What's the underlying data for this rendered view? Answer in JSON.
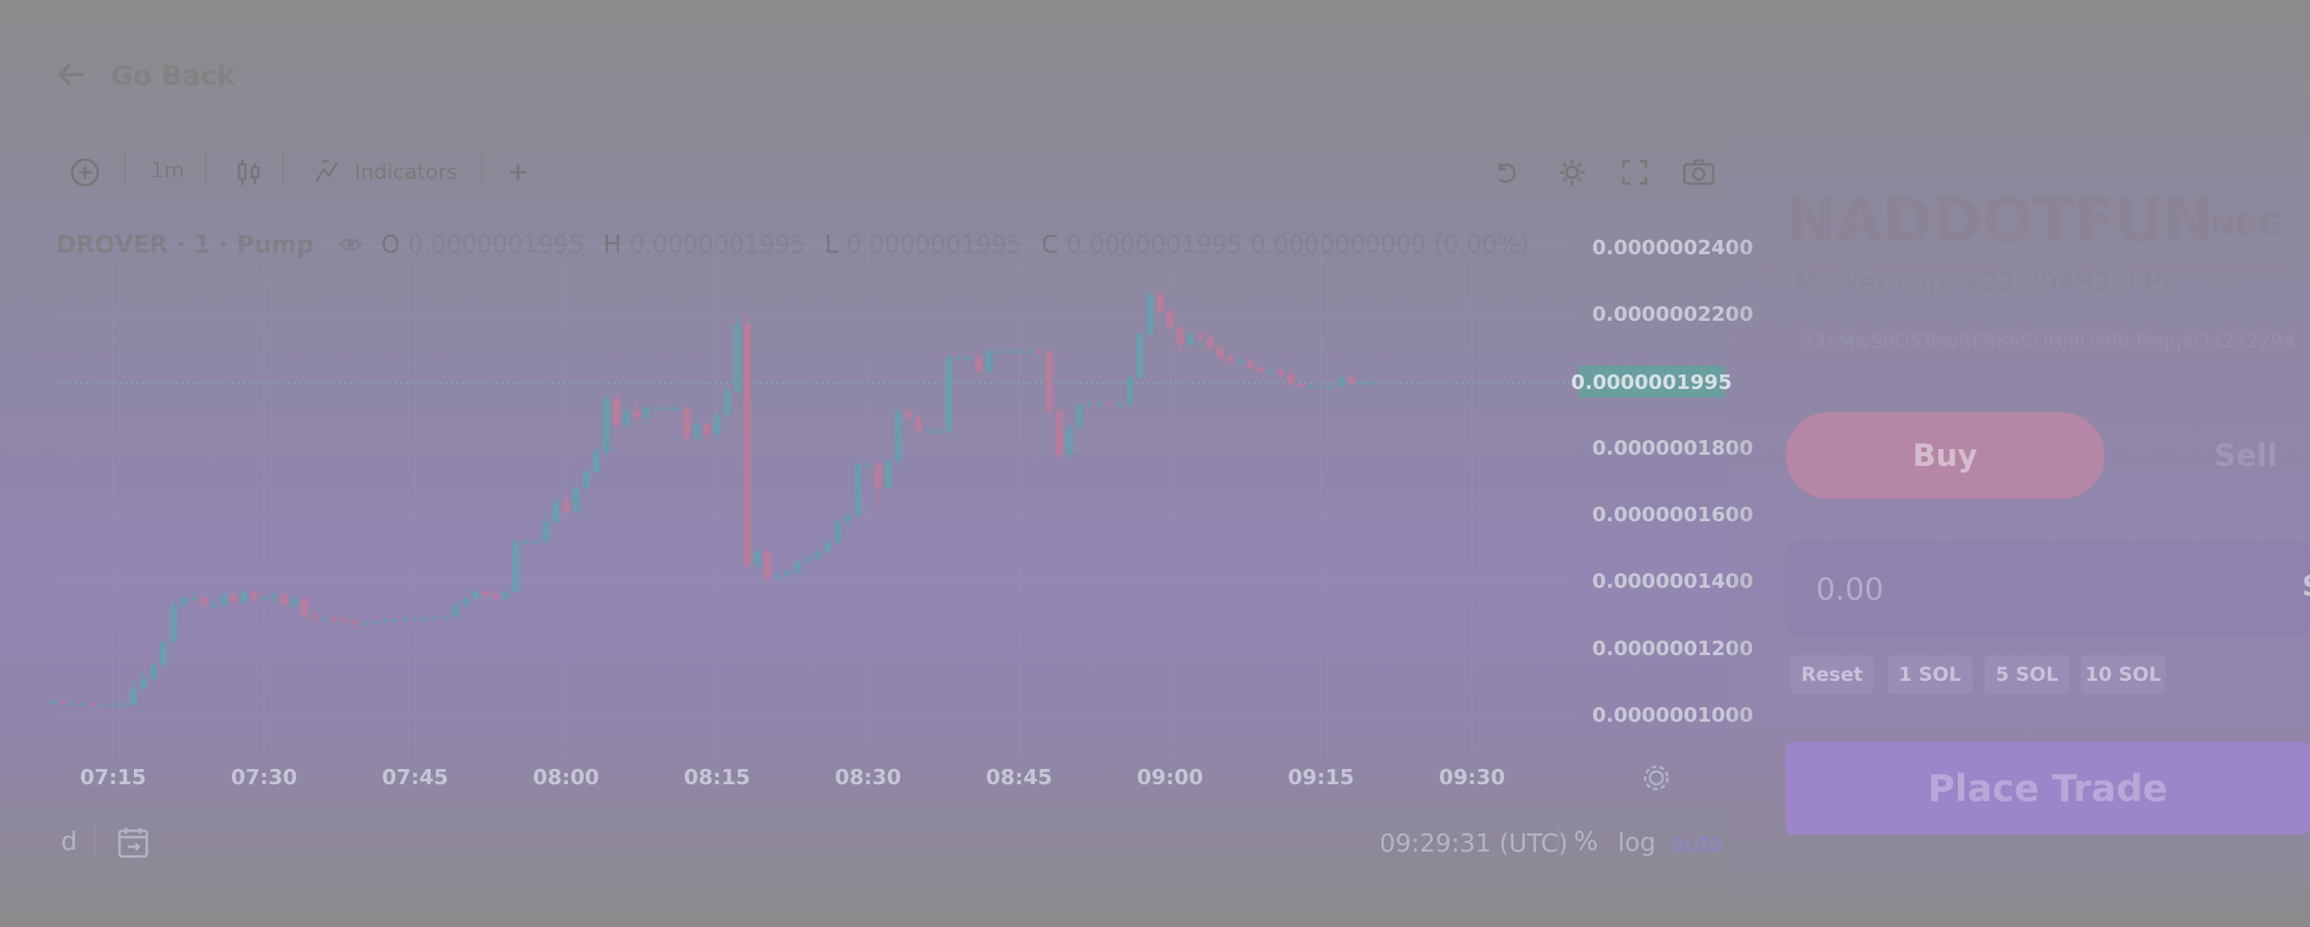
{
  "nav": {
    "back_label": "Go Back"
  },
  "toolbar": {
    "interval": "1m",
    "indicators_label": "Indicators"
  },
  "legend": {
    "symbol": "DROVER · 1 · Pump",
    "open_label": "O",
    "open": "0.0000001995",
    "high_label": "H",
    "high": "0.0000001995",
    "low_label": "L",
    "low": "0.0000001995",
    "close_label": "C",
    "close": "0.0000001995",
    "change": "0.0000000000 (0.00%)"
  },
  "price_scale": {
    "ticks": [
      "0.0000002400",
      "0.0000002200",
      "0.0000001800",
      "0.0000001600",
      "0.0000001400",
      "0.0000001200",
      "0.0000001000"
    ],
    "last_price": "0.0000001995"
  },
  "time_scale": {
    "ticks": [
      "07:15",
      "07:30",
      "07:45",
      "08:00",
      "08:15",
      "08:30",
      "08:45",
      "09:00",
      "09:15",
      "09:30"
    ]
  },
  "bottom_bar": {
    "range_fragment": "d",
    "clock": "09:29:31 (UTC)",
    "percent": "%",
    "log": "log",
    "auto": "auto"
  },
  "token": {
    "name": "NADDOTFUN",
    "ticker": "NDG",
    "market_cap": "Market cap: $23.39483.345",
    "address": "23eMwS8O5TewR6886SOHjdOMRcFeqq4Q4222294"
  },
  "trade": {
    "buy_label": "Buy",
    "sell_label": "Sell",
    "amount_placeholder": "0.00",
    "amount_unit": "S",
    "quick_amounts": [
      "Reset",
      "1 SOL",
      "5 SOL",
      "10 SOL"
    ],
    "place_label": "Place Trade"
  },
  "colors": {
    "up": "#6c9cae",
    "down": "#b77d9c",
    "buy": "#b686a6",
    "place_trade": "#9c85c8"
  },
  "chart_data": {
    "type": "candlestick",
    "y_range": [
      9.5e-08,
      2.43e-07
    ],
    "x_range": [
      "07:09",
      "09:36"
    ],
    "candles": [
      {
        "t": "07:09",
        "o": 1.04,
        "h": 1.05,
        "l": 1.03,
        "c": 1.04
      },
      {
        "t": "07:10",
        "o": 1.04,
        "h": 1.04,
        "l": 1.03,
        "c": 1.035
      },
      {
        "t": "07:11",
        "o": 1.035,
        "h": 1.04,
        "l": 1.03,
        "c": 1.035
      },
      {
        "t": "07:12",
        "o": 1.035,
        "h": 1.04,
        "l": 1.03,
        "c": 1.035
      },
      {
        "t": "07:13",
        "o": 1.035,
        "h": 1.04,
        "l": 1.03,
        "c": 1.03
      },
      {
        "t": "07:14",
        "o": 1.03,
        "h": 1.04,
        "l": 1.03,
        "c": 1.03
      },
      {
        "t": "07:15",
        "o": 1.03,
        "h": 1.04,
        "l": 1.03,
        "c": 1.03
      },
      {
        "t": "07:16",
        "o": 1.03,
        "h": 1.05,
        "l": 1.03,
        "c": 1.03
      },
      {
        "t": "07:17",
        "o": 1.03,
        "h": 1.1,
        "l": 1.03,
        "c": 1.08
      },
      {
        "t": "07:18",
        "o": 1.08,
        "h": 1.13,
        "l": 1.07,
        "c": 1.11
      },
      {
        "t": "07:19",
        "o": 1.11,
        "h": 1.16,
        "l": 1.1,
        "c": 1.15
      },
      {
        "t": "07:20",
        "o": 1.15,
        "h": 1.23,
        "l": 1.14,
        "c": 1.22
      },
      {
        "t": "07:21",
        "o": 1.22,
        "h": 1.35,
        "l": 1.21,
        "c": 1.33
      },
      {
        "t": "07:22",
        "o": 1.33,
        "h": 1.36,
        "l": 1.32,
        "c": 1.35
      },
      {
        "t": "07:23",
        "o": 1.35,
        "h": 1.37,
        "l": 1.34,
        "c": 1.35
      },
      {
        "t": "07:24",
        "o": 1.35,
        "h": 1.36,
        "l": 1.32,
        "c": 1.33
      },
      {
        "t": "07:25",
        "o": 1.33,
        "h": 1.35,
        "l": 1.32,
        "c": 1.33
      },
      {
        "t": "07:26",
        "o": 1.33,
        "h": 1.37,
        "l": 1.32,
        "c": 1.36
      },
      {
        "t": "07:27",
        "o": 1.36,
        "h": 1.37,
        "l": 1.33,
        "c": 1.34
      },
      {
        "t": "07:28",
        "o": 1.34,
        "h": 1.38,
        "l": 1.33,
        "c": 1.37
      },
      {
        "t": "07:29",
        "o": 1.37,
        "h": 1.38,
        "l": 1.34,
        "c": 1.35
      },
      {
        "t": "07:30",
        "o": 1.35,
        "h": 1.36,
        "l": 1.34,
        "c": 1.35
      },
      {
        "t": "07:31",
        "o": 1.35,
        "h": 1.37,
        "l": 1.33,
        "c": 1.36
      },
      {
        "t": "07:32",
        "o": 1.36,
        "h": 1.37,
        "l": 1.32,
        "c": 1.33
      },
      {
        "t": "07:33",
        "o": 1.33,
        "h": 1.36,
        "l": 1.32,
        "c": 1.35
      },
      {
        "t": "07:34",
        "o": 1.35,
        "h": 1.35,
        "l": 1.29,
        "c": 1.3
      },
      {
        "t": "07:35",
        "o": 1.3,
        "h": 1.31,
        "l": 1.28,
        "c": 1.29
      },
      {
        "t": "07:36",
        "o": 1.29,
        "h": 1.3,
        "l": 1.28,
        "c": 1.29
      },
      {
        "t": "07:37",
        "o": 1.29,
        "h": 1.3,
        "l": 1.28,
        "c": 1.285
      },
      {
        "t": "07:38",
        "o": 1.285,
        "h": 1.3,
        "l": 1.27,
        "c": 1.28
      },
      {
        "t": "07:39",
        "o": 1.28,
        "h": 1.29,
        "l": 1.26,
        "c": 1.275
      },
      {
        "t": "07:40",
        "o": 1.275,
        "h": 1.28,
        "l": 1.27,
        "c": 1.275
      },
      {
        "t": "07:41",
        "o": 1.275,
        "h": 1.28,
        "l": 1.27,
        "c": 1.28
      },
      {
        "t": "07:42",
        "o": 1.28,
        "h": 1.29,
        "l": 1.27,
        "c": 1.285
      },
      {
        "t": "07:43",
        "o": 1.285,
        "h": 1.29,
        "l": 1.28,
        "c": 1.285
      },
      {
        "t": "07:44",
        "o": 1.285,
        "h": 1.3,
        "l": 1.28,
        "c": 1.29
      },
      {
        "t": "07:45",
        "o": 1.29,
        "h": 1.3,
        "l": 1.28,
        "c": 1.29
      },
      {
        "t": "07:46",
        "o": 1.29,
        "h": 1.3,
        "l": 1.28,
        "c": 1.29
      },
      {
        "t": "07:47",
        "o": 1.29,
        "h": 1.3,
        "l": 1.28,
        "c": 1.295
      },
      {
        "t": "07:48",
        "o": 1.295,
        "h": 1.3,
        "l": 1.29,
        "c": 1.295
      },
      {
        "t": "07:49",
        "o": 1.295,
        "h": 1.34,
        "l": 1.29,
        "c": 1.33
      },
      {
        "t": "07:50",
        "o": 1.33,
        "h": 1.36,
        "l": 1.32,
        "c": 1.35
      },
      {
        "t": "07:51",
        "o": 1.35,
        "h": 1.38,
        "l": 1.34,
        "c": 1.37
      },
      {
        "t": "07:52",
        "o": 1.37,
        "h": 1.38,
        "l": 1.35,
        "c": 1.36
      },
      {
        "t": "07:53",
        "o": 1.36,
        "h": 1.38,
        "l": 1.34,
        "c": 1.35
      },
      {
        "t": "07:54",
        "o": 1.35,
        "h": 1.38,
        "l": 1.35,
        "c": 1.37
      },
      {
        "t": "07:55",
        "o": 1.37,
        "h": 1.53,
        "l": 1.36,
        "c": 1.52
      },
      {
        "t": "07:56",
        "o": 1.52,
        "h": 1.53,
        "l": 1.51,
        "c": 1.52
      },
      {
        "t": "07:57",
        "o": 1.52,
        "h": 1.53,
        "l": 1.51,
        "c": 1.52
      },
      {
        "t": "07:58",
        "o": 1.52,
        "h": 1.6,
        "l": 1.51,
        "c": 1.58
      },
      {
        "t": "07:59",
        "o": 1.58,
        "h": 1.65,
        "l": 1.57,
        "c": 1.64
      },
      {
        "t": "08:00",
        "o": 1.64,
        "h": 1.67,
        "l": 1.6,
        "c": 1.61
      },
      {
        "t": "08:01",
        "o": 1.61,
        "h": 1.69,
        "l": 1.6,
        "c": 1.68
      },
      {
        "t": "08:02",
        "o": 1.68,
        "h": 1.74,
        "l": 1.67,
        "c": 1.73
      },
      {
        "t": "08:03",
        "o": 1.73,
        "h": 1.8,
        "l": 1.72,
        "c": 1.79
      },
      {
        "t": "08:04",
        "o": 1.79,
        "h": 1.96,
        "l": 1.77,
        "c": 1.95
      },
      {
        "t": "08:05",
        "o": 1.95,
        "h": 1.96,
        "l": 1.86,
        "c": 1.87
      },
      {
        "t": "08:06",
        "o": 1.87,
        "h": 1.92,
        "l": 1.86,
        "c": 1.91
      },
      {
        "t": "08:07",
        "o": 1.91,
        "h": 1.94,
        "l": 1.88,
        "c": 1.89
      },
      {
        "t": "08:08",
        "o": 1.89,
        "h": 1.93,
        "l": 1.87,
        "c": 1.92
      },
      {
        "t": "08:09",
        "o": 1.92,
        "h": 1.93,
        "l": 1.91,
        "c": 1.92
      },
      {
        "t": "08:10",
        "o": 1.92,
        "h": 1.93,
        "l": 1.91,
        "c": 1.92
      },
      {
        "t": "08:11",
        "o": 1.92,
        "h": 1.93,
        "l": 1.91,
        "c": 1.92
      },
      {
        "t": "08:12",
        "o": 1.92,
        "h": 1.93,
        "l": 1.82,
        "c": 1.83
      },
      {
        "t": "08:13",
        "o": 1.83,
        "h": 1.88,
        "l": 1.82,
        "c": 1.87
      },
      {
        "t": "08:14",
        "o": 1.87,
        "h": 1.88,
        "l": 1.82,
        "c": 1.84
      },
      {
        "t": "08:15",
        "o": 1.84,
        "h": 1.91,
        "l": 1.83,
        "c": 1.9
      },
      {
        "t": "08:16",
        "o": 1.9,
        "h": 1.98,
        "l": 1.89,
        "c": 1.97
      },
      {
        "t": "08:17",
        "o": 1.97,
        "h": 2.2,
        "l": 1.96,
        "c": 2.17
      },
      {
        "t": "08:18",
        "o": 2.17,
        "h": 2.2,
        "l": 1.44,
        "c": 1.45
      },
      {
        "t": "08:19",
        "o": 1.45,
        "h": 1.5,
        "l": 1.44,
        "c": 1.49
      },
      {
        "t": "08:20",
        "o": 1.49,
        "h": 1.5,
        "l": 1.4,
        "c": 1.41
      },
      {
        "t": "08:21",
        "o": 1.41,
        "h": 1.43,
        "l": 1.4,
        "c": 1.42
      },
      {
        "t": "08:22",
        "o": 1.42,
        "h": 1.44,
        "l": 1.41,
        "c": 1.43
      },
      {
        "t": "08:23",
        "o": 1.43,
        "h": 1.47,
        "l": 1.42,
        "c": 1.46
      },
      {
        "t": "08:24",
        "o": 1.46,
        "h": 1.48,
        "l": 1.45,
        "c": 1.47
      },
      {
        "t": "08:25",
        "o": 1.47,
        "h": 1.5,
        "l": 1.46,
        "c": 1.49
      },
      {
        "t": "08:26",
        "o": 1.49,
        "h": 1.53,
        "l": 1.48,
        "c": 1.52
      },
      {
        "t": "08:27",
        "o": 1.52,
        "h": 1.59,
        "l": 1.51,
        "c": 1.58
      },
      {
        "t": "08:28",
        "o": 1.58,
        "h": 1.61,
        "l": 1.56,
        "c": 1.6
      },
      {
        "t": "08:29",
        "o": 1.6,
        "h": 1.76,
        "l": 1.59,
        "c": 1.75
      },
      {
        "t": "08:30",
        "o": 1.75,
        "h": 1.76,
        "l": 1.74,
        "c": 1.75
      },
      {
        "t": "08:31",
        "o": 1.75,
        "h": 1.77,
        "l": 1.62,
        "c": 1.68
      },
      {
        "t": "08:32",
        "o": 1.68,
        "h": 1.77,
        "l": 1.67,
        "c": 1.76
      },
      {
        "t": "08:33",
        "o": 1.76,
        "h": 1.92,
        "l": 1.75,
        "c": 1.91
      },
      {
        "t": "08:34",
        "o": 1.91,
        "h": 1.92,
        "l": 1.88,
        "c": 1.89
      },
      {
        "t": "08:35",
        "o": 1.89,
        "h": 1.9,
        "l": 1.84,
        "c": 1.85
      },
      {
        "t": "08:36",
        "o": 1.85,
        "h": 1.86,
        "l": 1.84,
        "c": 1.85
      },
      {
        "t": "08:37",
        "o": 1.85,
        "h": 1.86,
        "l": 1.84,
        "c": 1.85
      },
      {
        "t": "08:38",
        "o": 1.85,
        "h": 2.08,
        "l": 1.84,
        "c": 2.07
      },
      {
        "t": "08:39",
        "o": 2.07,
        "h": 2.08,
        "l": 2.06,
        "c": 2.07
      },
      {
        "t": "08:40",
        "o": 2.07,
        "h": 2.08,
        "l": 2.06,
        "c": 2.07
      },
      {
        "t": "08:41",
        "o": 2.07,
        "h": 2.08,
        "l": 2.02,
        "c": 2.03
      },
      {
        "t": "08:42",
        "o": 2.03,
        "h": 2.1,
        "l": 2.02,
        "c": 2.09
      },
      {
        "t": "08:43",
        "o": 2.09,
        "h": 2.1,
        "l": 2.08,
        "c": 2.09
      },
      {
        "t": "08:44",
        "o": 2.09,
        "h": 2.1,
        "l": 2.08,
        "c": 2.09
      },
      {
        "t": "08:45",
        "o": 2.09,
        "h": 2.1,
        "l": 2.08,
        "c": 2.09
      },
      {
        "t": "08:46",
        "o": 2.09,
        "h": 2.1,
        "l": 2.08,
        "c": 2.09
      },
      {
        "t": "08:47",
        "o": 2.09,
        "h": 2.1,
        "l": 2.08,
        "c": 2.085
      },
      {
        "t": "08:48",
        "o": 2.085,
        "h": 2.1,
        "l": 1.9,
        "c": 1.91
      },
      {
        "t": "08:49",
        "o": 1.91,
        "h": 1.92,
        "l": 1.77,
        "c": 1.78
      },
      {
        "t": "08:50",
        "o": 1.78,
        "h": 1.87,
        "l": 1.77,
        "c": 1.86
      },
      {
        "t": "08:51",
        "o": 1.86,
        "h": 1.94,
        "l": 1.85,
        "c": 1.93
      },
      {
        "t": "08:52",
        "o": 1.93,
        "h": 1.94,
        "l": 1.92,
        "c": 1.93
      },
      {
        "t": "08:53",
        "o": 1.93,
        "h": 1.94,
        "l": 1.92,
        "c": 1.935
      },
      {
        "t": "08:54",
        "o": 1.935,
        "h": 1.94,
        "l": 1.92,
        "c": 1.93
      },
      {
        "t": "08:55",
        "o": 1.93,
        "h": 1.94,
        "l": 1.92,
        "c": 1.93
      },
      {
        "t": "08:56",
        "o": 1.93,
        "h": 2.02,
        "l": 1.92,
        "c": 2.01
      },
      {
        "t": "08:57",
        "o": 2.01,
        "h": 2.15,
        "l": 2.0,
        "c": 2.14
      },
      {
        "t": "08:58",
        "o": 2.14,
        "h": 2.27,
        "l": 2.13,
        "c": 2.26
      },
      {
        "t": "08:59",
        "o": 2.26,
        "h": 2.27,
        "l": 2.2,
        "c": 2.21
      },
      {
        "t": "09:00",
        "o": 2.21,
        "h": 2.22,
        "l": 2.15,
        "c": 2.16
      },
      {
        "t": "09:01",
        "o": 2.16,
        "h": 2.17,
        "l": 2.09,
        "c": 2.11
      },
      {
        "t": "09:02",
        "o": 2.11,
        "h": 2.15,
        "l": 2.1,
        "c": 2.14
      },
      {
        "t": "09:03",
        "o": 2.14,
        "h": 2.15,
        "l": 2.12,
        "c": 2.13
      },
      {
        "t": "09:04",
        "o": 2.13,
        "h": 2.14,
        "l": 2.09,
        "c": 2.1
      },
      {
        "t": "09:05",
        "o": 2.1,
        "h": 2.11,
        "l": 2.06,
        "c": 2.07
      },
      {
        "t": "09:06",
        "o": 2.07,
        "h": 2.08,
        "l": 2.05,
        "c": 2.06
      },
      {
        "t": "09:07",
        "o": 2.06,
        "h": 2.07,
        "l": 2.05,
        "c": 2.06
      },
      {
        "t": "09:08",
        "o": 2.06,
        "h": 2.07,
        "l": 2.03,
        "c": 2.04
      },
      {
        "t": "09:09",
        "o": 2.04,
        "h": 2.05,
        "l": 2.02,
        "c": 2.03
      },
      {
        "t": "09:10",
        "o": 2.03,
        "h": 2.04,
        "l": 2.02,
        "c": 2.03
      },
      {
        "t": "09:11",
        "o": 2.03,
        "h": 2.04,
        "l": 2.01,
        "c": 2.02
      },
      {
        "t": "09:12",
        "o": 2.02,
        "h": 2.03,
        "l": 1.98,
        "c": 1.99
      },
      {
        "t": "09:13",
        "o": 1.99,
        "h": 2.0,
        "l": 1.98,
        "c": 1.985
      },
      {
        "t": "09:14",
        "o": 1.985,
        "h": 1.99,
        "l": 1.98,
        "c": 1.985
      },
      {
        "t": "09:15",
        "o": 1.985,
        "h": 1.99,
        "l": 1.98,
        "c": 1.985
      },
      {
        "t": "09:16",
        "o": 1.985,
        "h": 1.99,
        "l": 1.98,
        "c": 1.985
      },
      {
        "t": "09:17",
        "o": 1.985,
        "h": 2.02,
        "l": 1.98,
        "c": 2.01
      },
      {
        "t": "09:18",
        "o": 2.01,
        "h": 2.02,
        "l": 1.99,
        "c": 1.995
      },
      {
        "t": "09:19",
        "o": 1.995,
        "h": 2.0,
        "l": 1.99,
        "c": 1.995
      },
      {
        "t": "09:20",
        "o": 1.995,
        "h": 2.0,
        "l": 1.99,
        "c": 1.995
      }
    ],
    "time_axis_start": "07:09",
    "time_axis_end": "09:36",
    "y_scale_multiplier": "1e-7"
  }
}
